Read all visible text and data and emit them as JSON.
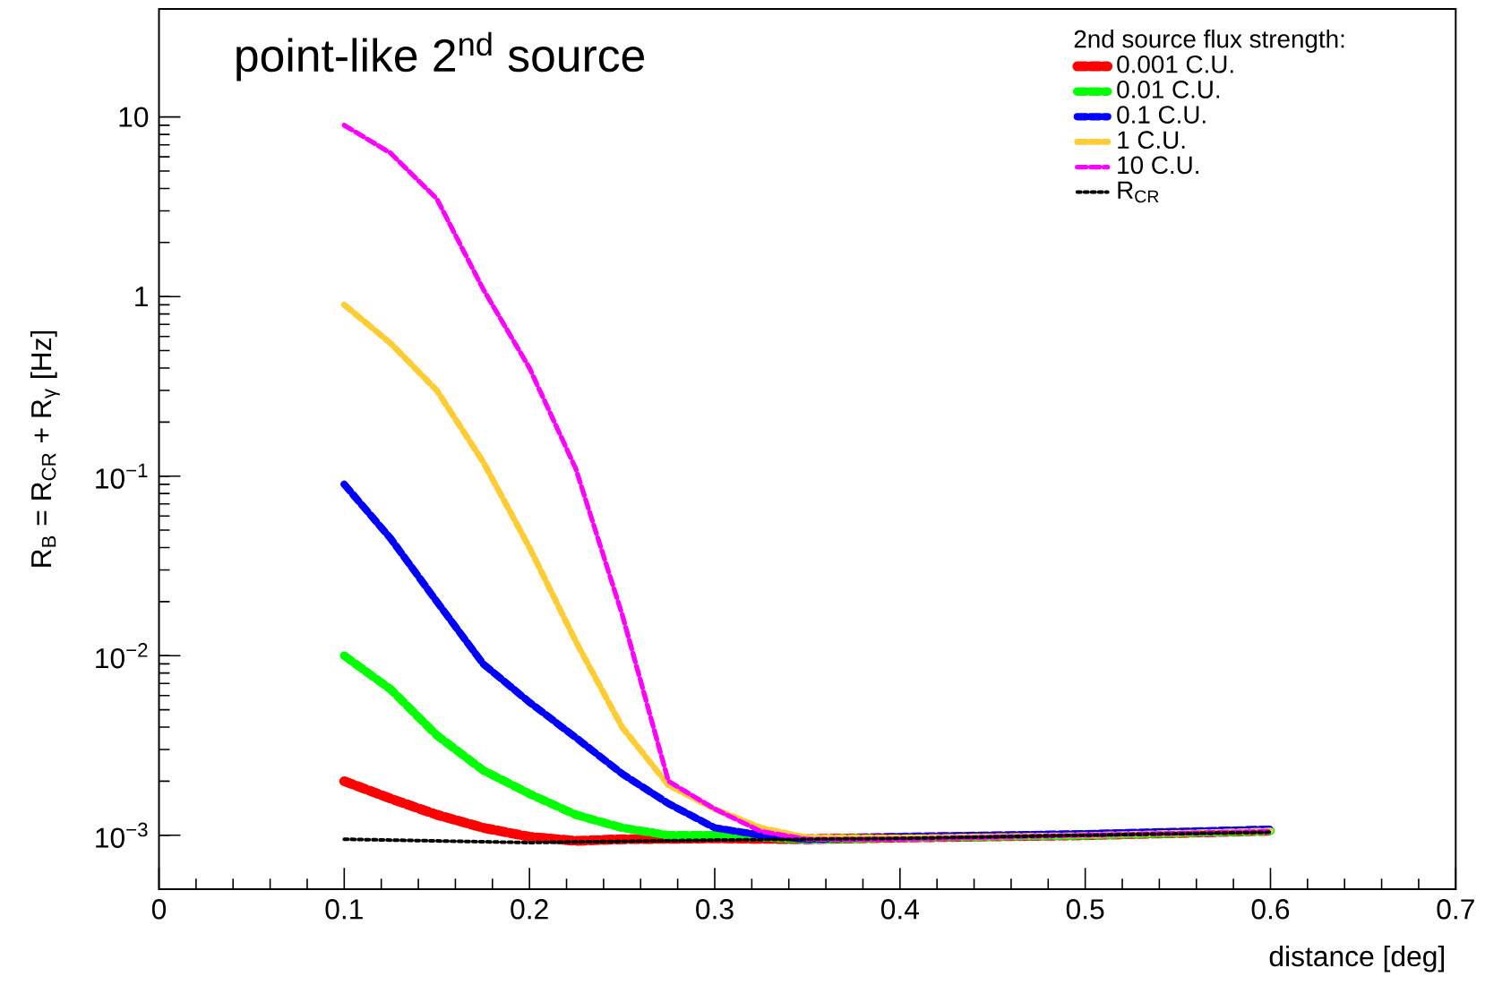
{
  "chart_data": {
    "type": "line",
    "title": "point-like 2$^{nd}$ source",
    "xlabel": "distance [deg]",
    "ylabel": "R$_{B}$ = R$_{CR}$ + R$_{γ}$     [Hz]",
    "legend_title": "2nd source flux strength:",
    "legend": "top right",
    "log": "y",
    "grid": false,
    "marker": "none",
    "xlim": [
      0,
      0.7
    ],
    "ylim": [
      0.0005,
      40
    ],
    "xticks": [
      0,
      0.1,
      0.2,
      0.3,
      0.4,
      0.5,
      0.6,
      0.7
    ],
    "yticks": [
      {
        "value": 0.001,
        "label": "10$^{−3}$"
      },
      {
        "value": 0.01,
        "label": "10$^{−2}$"
      },
      {
        "value": 0.1,
        "label": "10$^{−1}$"
      },
      1,
      10
    ],
    "series": [
      {
        "name": "0.001 C.U.",
        "color": "#ff0000",
        "line_style": "dashed",
        "x": [
          0.1,
          0.125,
          0.15,
          0.175,
          0.2,
          0.225,
          0.25,
          0.3,
          0.35,
          0.4,
          0.5,
          0.6
        ],
        "values": [
          0.002,
          0.0016,
          0.0013,
          0.0011,
          0.00098,
          0.00093,
          0.00095,
          0.00096,
          0.00095,
          0.00097,
          0.001,
          0.00106
        ]
      },
      {
        "name": "0.01 C.U.",
        "color": "#00ff00",
        "line_style": "dashed",
        "x": [
          0.1,
          0.125,
          0.15,
          0.175,
          0.2,
          0.225,
          0.25,
          0.275,
          0.3,
          0.35,
          0.4,
          0.5,
          0.6
        ],
        "values": [
          0.01,
          0.0065,
          0.0036,
          0.0023,
          0.0017,
          0.0013,
          0.0011,
          0.001,
          0.001,
          0.00095,
          0.00097,
          0.001,
          0.00106
        ]
      },
      {
        "name": "0.1 C.U.",
        "color": "#0000ff",
        "line_style": "dashed",
        "x": [
          0.1,
          0.125,
          0.15,
          0.175,
          0.2,
          0.225,
          0.25,
          0.275,
          0.3,
          0.325,
          0.35,
          0.4,
          0.5,
          0.6
        ],
        "values": [
          0.09,
          0.045,
          0.02,
          0.009,
          0.0055,
          0.0035,
          0.0022,
          0.0015,
          0.0011,
          0.001,
          0.00095,
          0.00098,
          0.00102,
          0.00108
        ]
      },
      {
        "name": "1 C.U.",
        "color": "#ffcc33",
        "line_style": "dashed",
        "x": [
          0.1,
          0.125,
          0.15,
          0.175,
          0.2,
          0.225,
          0.25,
          0.275,
          0.3,
          0.325,
          0.35,
          0.4,
          0.5,
          0.6
        ],
        "values": [
          0.9,
          0.55,
          0.3,
          0.12,
          0.04,
          0.012,
          0.004,
          0.0019,
          0.0014,
          0.0011,
          0.00097,
          0.00097,
          0.001,
          0.00106
        ]
      },
      {
        "name": "10 C.U.",
        "color": "#ff00ff",
        "line_style": "dashed",
        "x": [
          0.1,
          0.125,
          0.15,
          0.175,
          0.2,
          0.225,
          0.25,
          0.275,
          0.3,
          0.325,
          0.35,
          0.4,
          0.5,
          0.6
        ],
        "values": [
          9,
          6.3,
          3.5,
          1.1,
          0.4,
          0.11,
          0.017,
          0.002,
          0.0014,
          0.00105,
          0.00095,
          0.00095,
          0.001,
          0.00105
        ]
      },
      {
        "name": "R$_{CR}$",
        "color": "#000000",
        "line_style": "dotted",
        "x": [
          0.1,
          0.2,
          0.3,
          0.4,
          0.5,
          0.6
        ],
        "values": [
          0.00095,
          0.00091,
          0.00094,
          0.00096,
          0.001,
          0.00104
        ]
      }
    ]
  }
}
